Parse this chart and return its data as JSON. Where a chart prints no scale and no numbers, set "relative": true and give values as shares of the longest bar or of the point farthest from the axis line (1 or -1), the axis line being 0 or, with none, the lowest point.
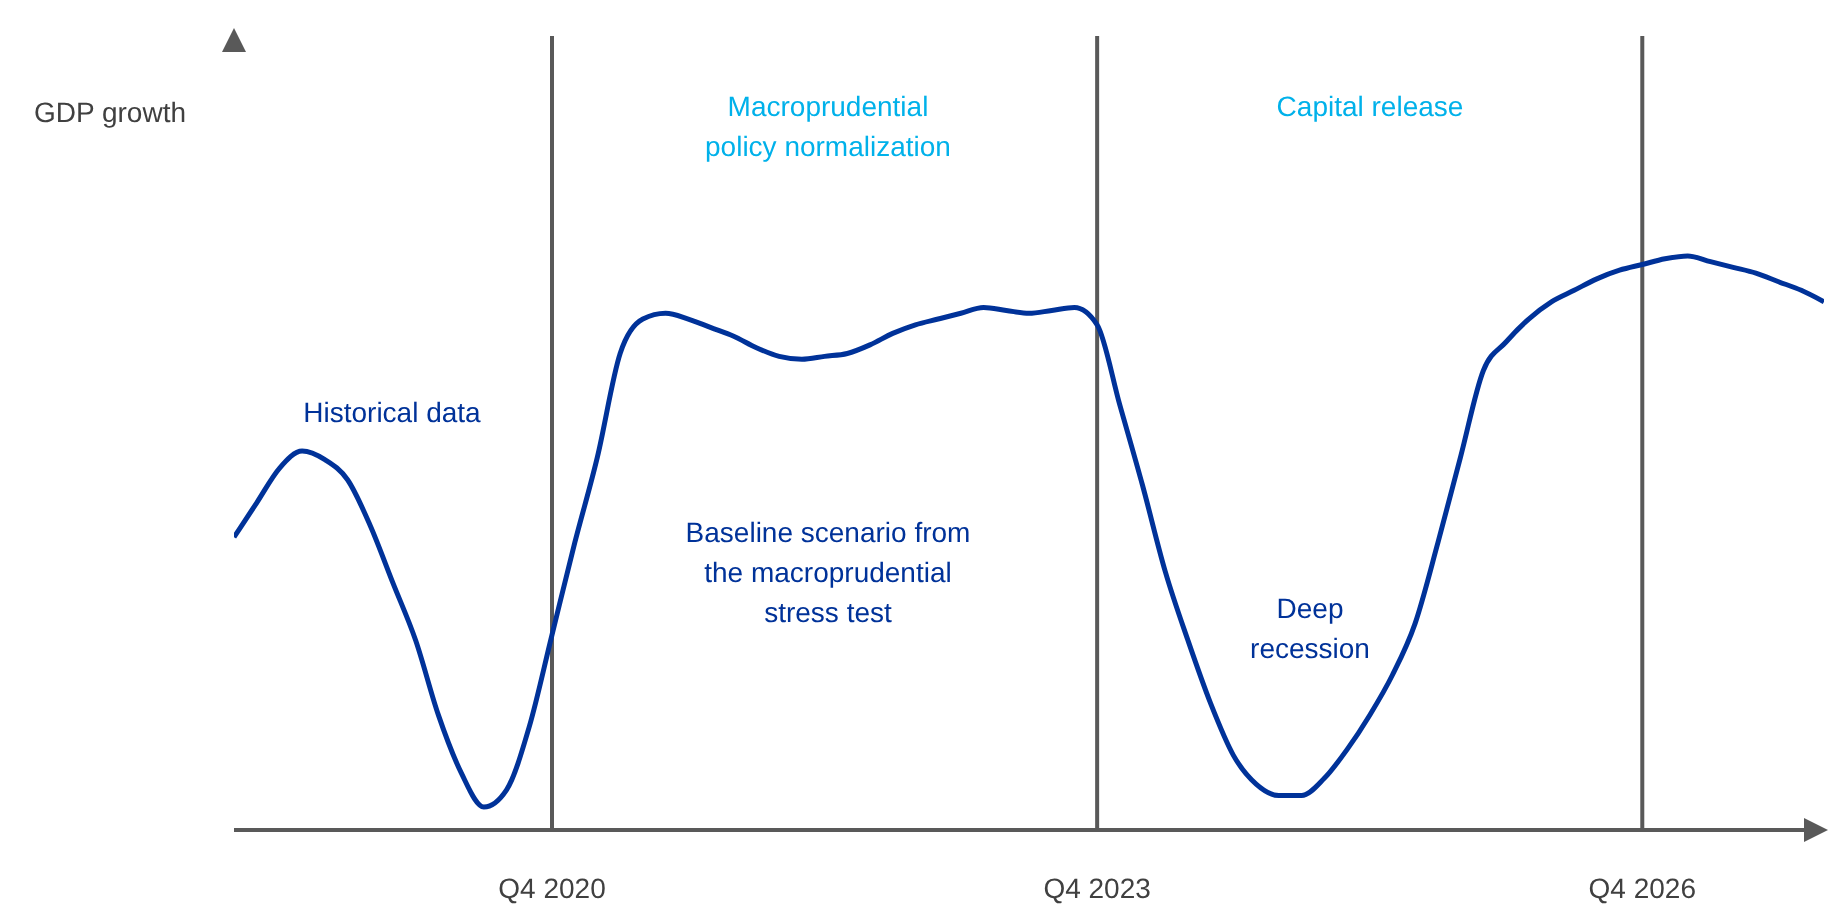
{
  "chart_data": {
    "type": "line",
    "relative": true,
    "categories": [
      null,
      null,
      null,
      null,
      null,
      null,
      null,
      null,
      null,
      null,
      null,
      null,
      null,
      null,
      "Q4 2020",
      null,
      null,
      null,
      null,
      null,
      null,
      null,
      null,
      null,
      null,
      null,
      null,
      null,
      null,
      null,
      null,
      null,
      null,
      null,
      null,
      null,
      null,
      null,
      "Q4 2023",
      null,
      null,
      null,
      null,
      null,
      null,
      null,
      null,
      null,
      null,
      null,
      null,
      null,
      null,
      null,
      null,
      null,
      null,
      null,
      null,
      null,
      null,
      null,
      "Q4 2026",
      null,
      null,
      null,
      null,
      null,
      null,
      null,
      null
    ],
    "series": [
      {
        "color": "#003299",
        "values": [
          0.51,
          0.57,
          0.63,
          0.66,
          0.645,
          0.61,
          0.53,
          0.43,
          0.33,
          0.2,
          0.1,
          0.04,
          0.07,
          0.18,
          0.34,
          0.5,
          0.65,
          0.83,
          0.89,
          0.9,
          0.89,
          0.875,
          0.86,
          0.84,
          0.825,
          0.82,
          0.825,
          0.83,
          0.845,
          0.865,
          0.88,
          0.89,
          0.9,
          0.91,
          0.905,
          0.9,
          0.905,
          0.91,
          0.88,
          0.74,
          0.6,
          0.45,
          0.33,
          0.22,
          0.13,
          0.08,
          0.06,
          0.06,
          0.09,
          0.14,
          0.2,
          0.27,
          0.36,
          0.5,
          0.65,
          0.8,
          0.85,
          0.89,
          0.92,
          0.94,
          0.96,
          0.975,
          0.985,
          0.995,
          1,
          0.99,
          0.98,
          0.97,
          0.955,
          0.94,
          0.92
        ]
      }
    ],
    "ref_lines": [
      {
        "axis": "x",
        "value": "Q4 2020",
        "color": "#595959"
      },
      {
        "axis": "x",
        "value": "Q4 2023",
        "color": "#595959"
      },
      {
        "axis": "x",
        "value": "Q4 2026",
        "color": "#595959"
      }
    ],
    "annotations": [
      "Historical data",
      "Macroprudential policy normalization",
      "Capital release",
      "Baseline scenario from the macroprudential stress test",
      "Deep recession",
      "GDP growth"
    ]
  }
}
